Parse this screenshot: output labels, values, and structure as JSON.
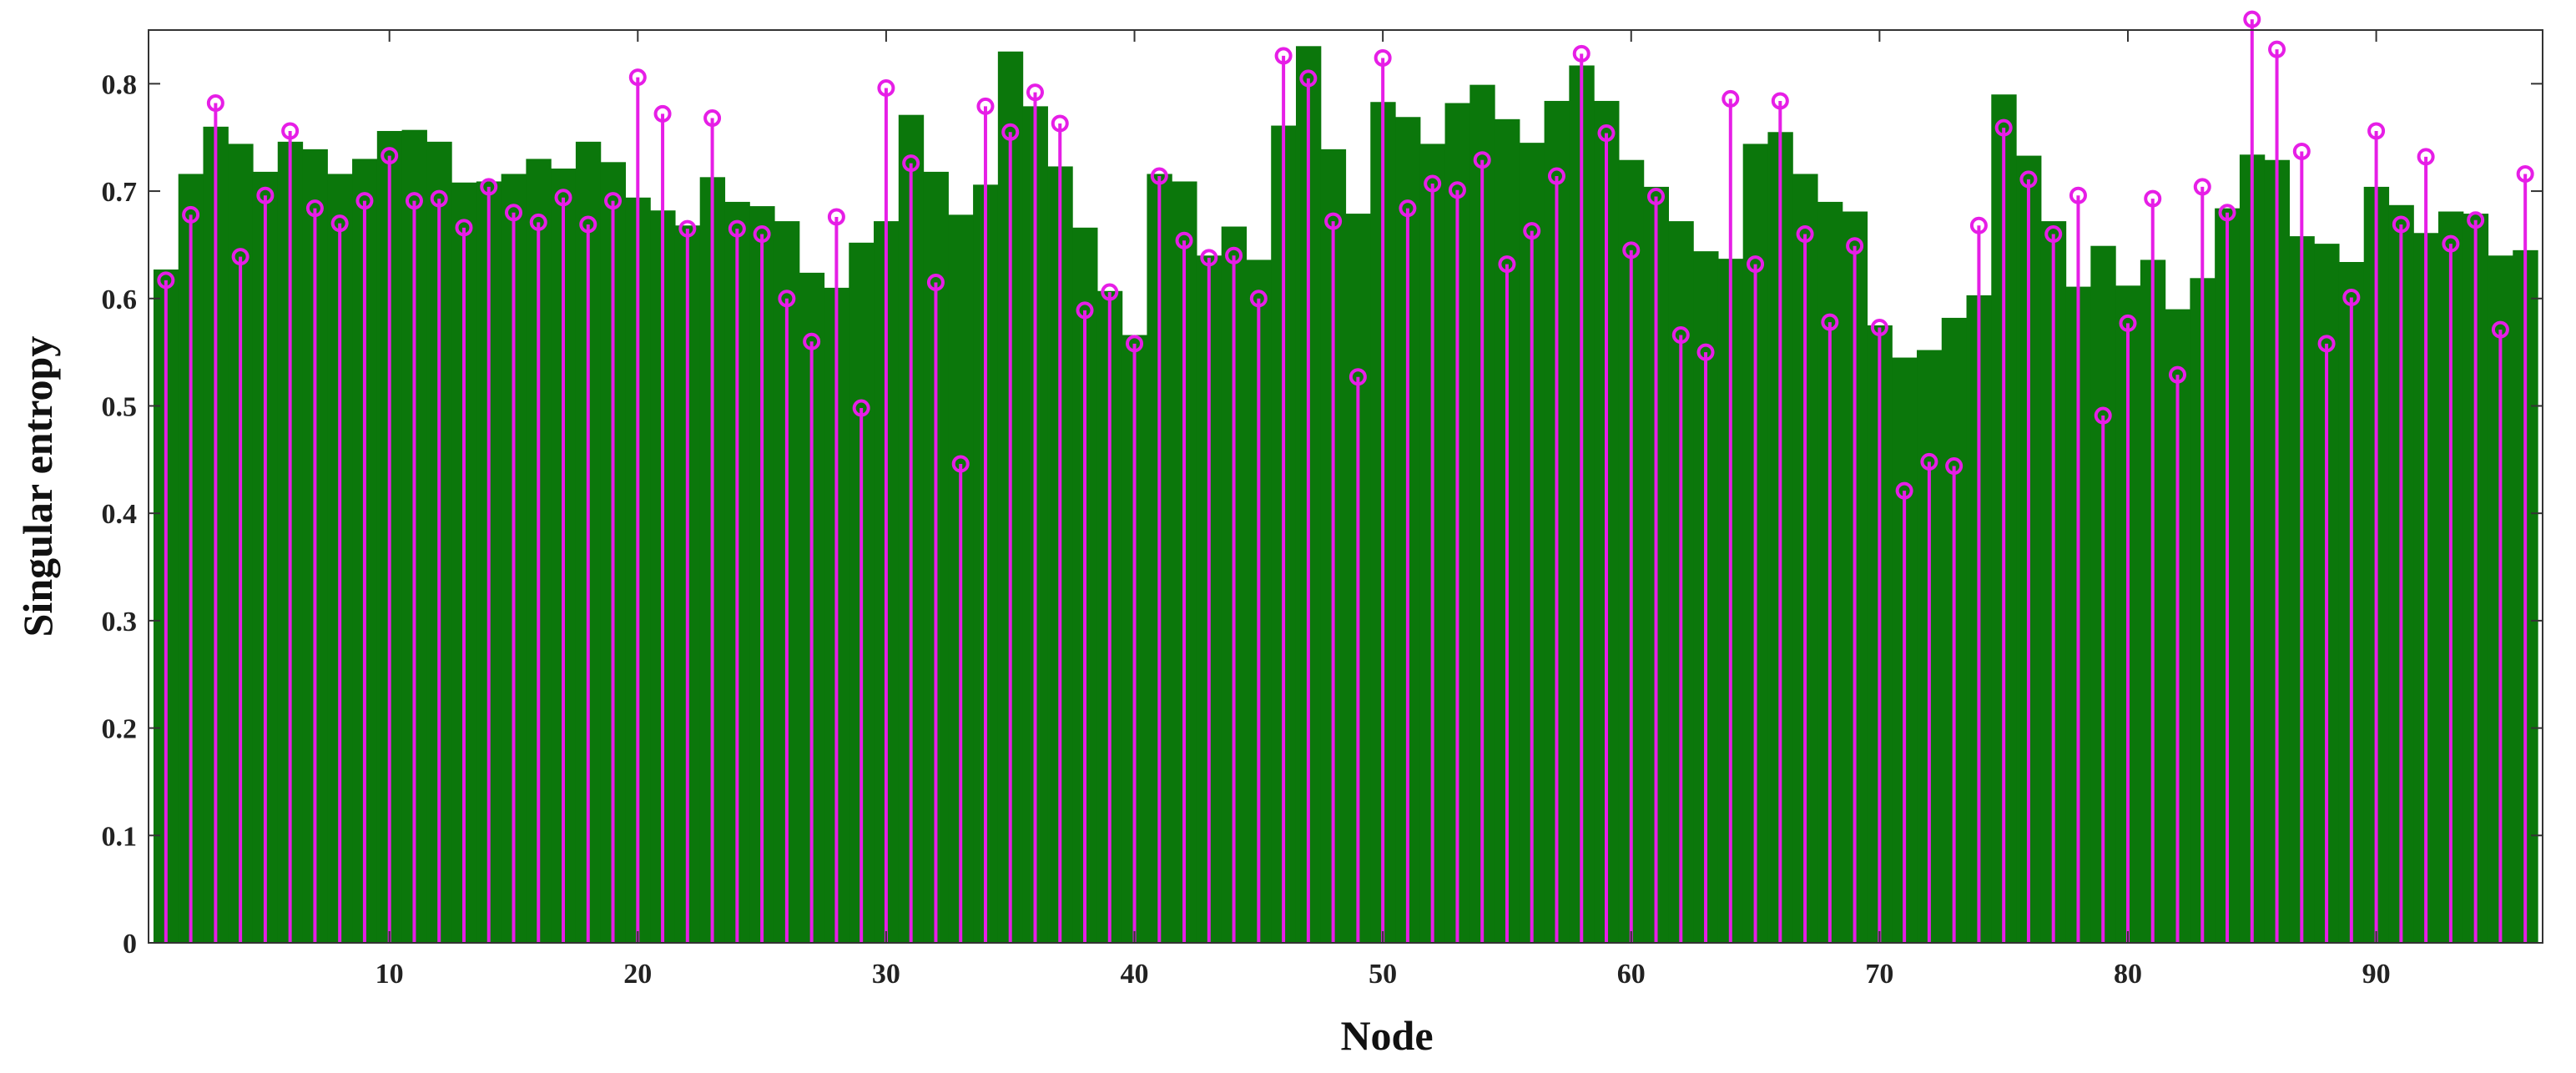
{
  "chart_data": {
    "type": "bar",
    "xlabel": "Node",
    "ylabel": "Singular entropy",
    "xlim": [
      0.3,
      96.7
    ],
    "ylim": [
      0,
      0.85
    ],
    "x_ticks": [
      10,
      20,
      30,
      40,
      50,
      60,
      70,
      80,
      90
    ],
    "y_ticks": [
      0,
      0.1,
      0.2,
      0.3,
      0.4,
      0.5,
      0.6,
      0.7,
      0.8
    ],
    "y_tick_labels": [
      "0",
      "0.1",
      "0.2",
      "0.3",
      "0.4",
      "0.5",
      "0.6",
      "0.7",
      "0.8"
    ],
    "x_tick_labels": [
      "10",
      "20",
      "30",
      "40",
      "50",
      "60",
      "70",
      "80",
      "90"
    ],
    "colors": {
      "bar": "#0b770b",
      "stem": "#e61ee6",
      "axis": "#333333",
      "background": "#ffffff"
    },
    "series": [
      {
        "type": "bar",
        "values": [
          0.627,
          0.716,
          0.76,
          0.744,
          0.718,
          0.746,
          0.739,
          0.716,
          0.73,
          0.756,
          0.757,
          0.746,
          0.708,
          0.709,
          0.716,
          0.73,
          0.721,
          0.746,
          0.727,
          0.694,
          0.682,
          0.668,
          0.713,
          0.69,
          0.686,
          0.672,
          0.624,
          0.61,
          0.652,
          0.672,
          0.771,
          0.718,
          0.678,
          0.706,
          0.83,
          0.779,
          0.723,
          0.666,
          0.607,
          0.566,
          0.716,
          0.709,
          0.64,
          0.667,
          0.636,
          0.761,
          0.835,
          0.739,
          0.679,
          0.783,
          0.769,
          0.744,
          0.782,
          0.799,
          0.767,
          0.745,
          0.784,
          0.817,
          0.784,
          0.729,
          0.704,
          0.672,
          0.644,
          0.637,
          0.744,
          0.755,
          0.716,
          0.69,
          0.681,
          0.575,
          0.545,
          0.552,
          0.582,
          0.603,
          0.79,
          0.733,
          0.672,
          0.611,
          0.649,
          0.612,
          0.636,
          0.59,
          0.619,
          0.684,
          0.734,
          0.729,
          0.658,
          0.651,
          0.634,
          0.704,
          0.687,
          0.661,
          0.681,
          0.679,
          0.64,
          0.645
        ]
      },
      {
        "type": "stem",
        "marker": "circle",
        "values": [
          0.617,
          0.678,
          0.782,
          0.639,
          0.696,
          0.756,
          0.684,
          0.67,
          0.691,
          0.733,
          0.691,
          0.693,
          0.666,
          0.704,
          0.68,
          0.671,
          0.694,
          0.669,
          0.691,
          0.806,
          0.772,
          0.665,
          0.768,
          0.665,
          0.66,
          0.6,
          0.56,
          0.676,
          0.498,
          0.796,
          0.726,
          0.615,
          0.446,
          0.779,
          0.755,
          0.792,
          0.763,
          0.589,
          0.606,
          0.558,
          0.714,
          0.654,
          0.638,
          0.64,
          0.6,
          0.826,
          0.805,
          0.672,
          0.527,
          0.824,
          0.684,
          0.707,
          0.701,
          0.729,
          0.632,
          0.663,
          0.714,
          0.828,
          0.754,
          0.645,
          0.695,
          0.566,
          0.55,
          0.786,
          0.632,
          0.784,
          0.66,
          0.578,
          0.649,
          0.573,
          0.421,
          0.448,
          0.444,
          0.668,
          0.759,
          0.711,
          0.66,
          0.696,
          0.491,
          0.577,
          0.693,
          0.529,
          0.704,
          0.68,
          0.86,
          0.832,
          0.737,
          0.558,
          0.601,
          0.756,
          0.669,
          0.732,
          0.651,
          0.673,
          0.571,
          0.716
        ]
      }
    ]
  }
}
